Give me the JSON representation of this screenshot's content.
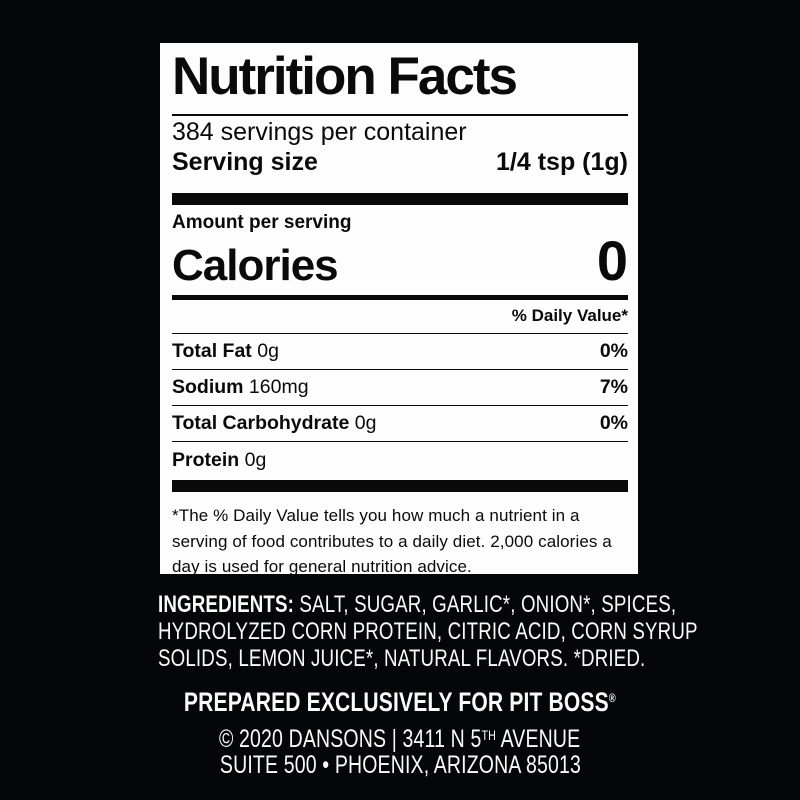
{
  "label": {
    "title": "Nutrition Facts",
    "servings_per_container": "384 servings per container",
    "serving_size_label": "Serving size",
    "serving_size_value": "1/4 tsp (1g)",
    "amount_per_serving": "Amount per serving",
    "calories_label": "Calories",
    "calories_value": "0",
    "daily_value_header": "% Daily Value*",
    "rows": [
      {
        "name": "Total Fat",
        "amount": "0g",
        "dv": "0%"
      },
      {
        "name": "Sodium",
        "amount": "160mg",
        "dv": "7%"
      },
      {
        "name": "Total Carbohydrate",
        "amount": "0g",
        "dv": "0%"
      },
      {
        "name": "Protein",
        "amount": "0g",
        "dv": ""
      }
    ],
    "footnote": "*The % Daily Value tells you how much a nutrient in a serving of food contributes to a daily diet. 2,000 calories a day is used for general nutrition advice."
  },
  "ingredients": {
    "bold_label": "INGREDIENTS:",
    "line1": "SALT, SUGAR, GARLIC*, ONION*, SPICES,",
    "line2": "HYDROLYZED CORN PROTEIN, CITRIC ACID, CORN SYRUP",
    "line3": "SOLIDS, LEMON JUICE*, NATURAL FLAVORS. *DRIED."
  },
  "footer": {
    "prepared": "PREPARED EXCLUSIVELY FOR PIT BOSS",
    "prepared_mark": "®",
    "copyright_pre": "© 2020 DANSONS | 3411 N 5",
    "copyright_sup": "TH",
    "copyright_post": "AVENUE",
    "address": "SUITE 500 • PHOENIX, ARIZONA 85013"
  },
  "colors": {
    "background": "#050607",
    "label_background": "#fdfdfd",
    "label_text": "#0a0a0a",
    "footer_text": "#fbfbfb"
  }
}
